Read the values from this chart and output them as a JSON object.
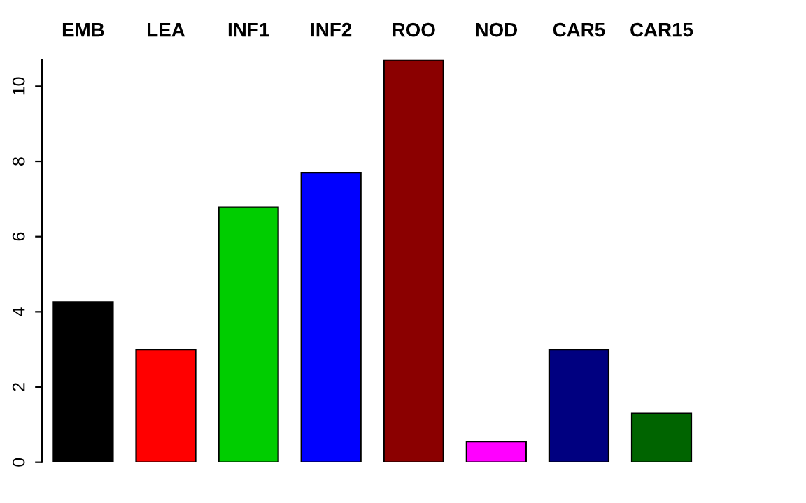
{
  "chart_data": {
    "type": "bar",
    "categories": [
      "EMB",
      "LEA",
      "INF1",
      "INF2",
      "ROO",
      "NOD",
      "CAR5",
      "CAR15"
    ],
    "values": [
      4.26,
      3.0,
      6.78,
      7.7,
      10.7,
      0.55,
      3.0,
      1.3
    ],
    "colors": [
      "#000000",
      "#ff0000",
      "#00cd00",
      "#0000ff",
      "#8b0000",
      "#ff00ff",
      "#000080",
      "#006400"
    ],
    "ylim": [
      0,
      10.7
    ],
    "yticks": [
      0,
      2,
      4,
      6,
      8,
      10
    ],
    "grid": false,
    "legend": false
  }
}
